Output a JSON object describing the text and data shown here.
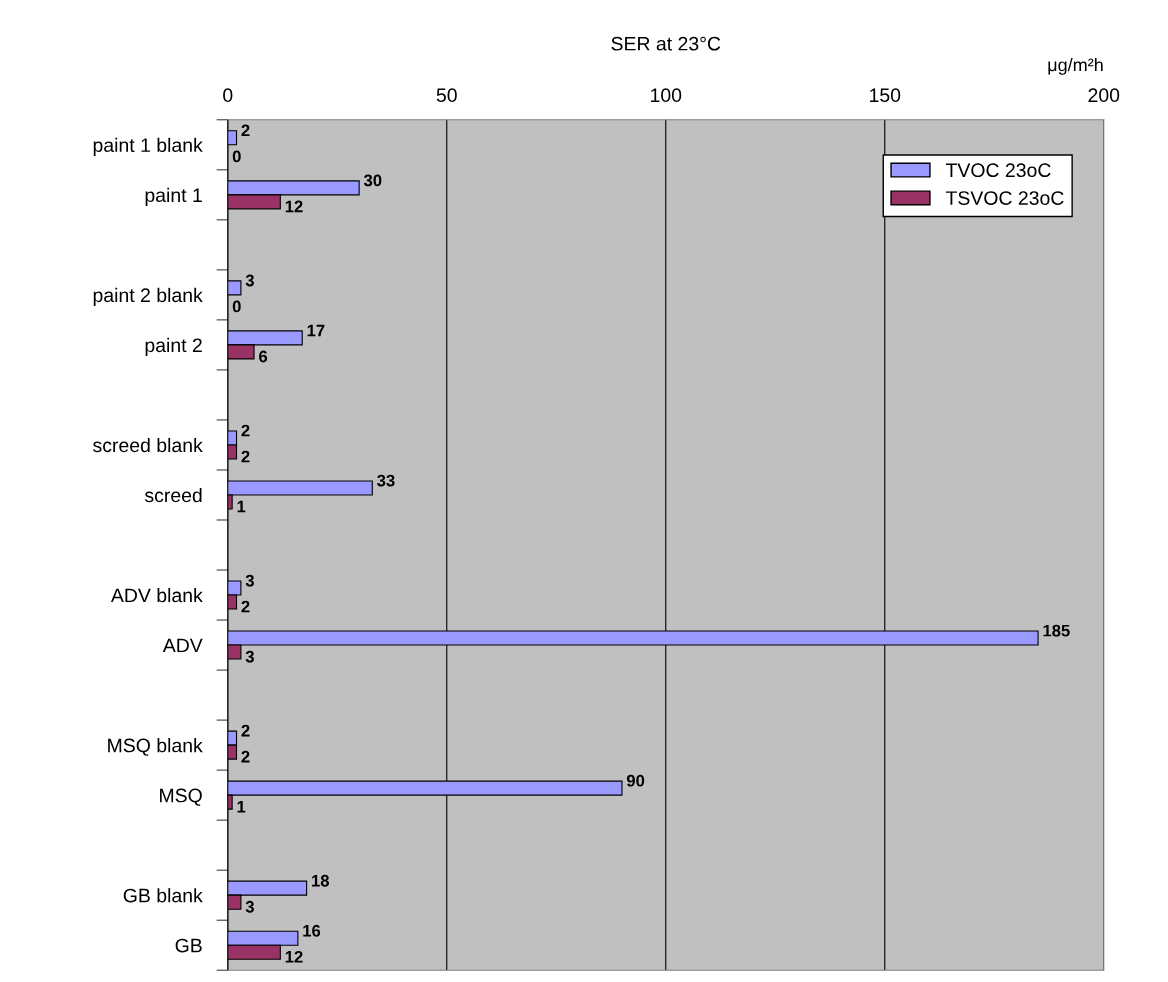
{
  "chart_data": {
    "type": "bar",
    "orientation": "horizontal",
    "title": "SER at 23°C",
    "xlabel": "μg/m²h",
    "categories": [
      "paint 1 blank",
      "paint 1",
      null,
      "paint 2 blank",
      "paint 2",
      null,
      "screed blank",
      "screed",
      null,
      "ADV blank",
      "ADV",
      null,
      "MSQ blank",
      "MSQ",
      null,
      "GB blank",
      "GB"
    ],
    "series": [
      {
        "name": "TVOC 23oC",
        "color": "#9999ff",
        "values": [
          2,
          30,
          null,
          3,
          17,
          null,
          2,
          33,
          null,
          3,
          185,
          null,
          2,
          90,
          null,
          18,
          16
        ]
      },
      {
        "name": "TSVOC 23oC",
        "color": "#993366",
        "values": [
          0,
          12,
          null,
          0,
          6,
          null,
          2,
          1,
          null,
          2,
          3,
          null,
          2,
          1,
          null,
          3,
          12
        ]
      }
    ],
    "xlim": [
      0,
      200
    ],
    "xticks": [
      0,
      50,
      100,
      150,
      200
    ],
    "grid": "x",
    "legend": "top right",
    "data_labels": true
  }
}
